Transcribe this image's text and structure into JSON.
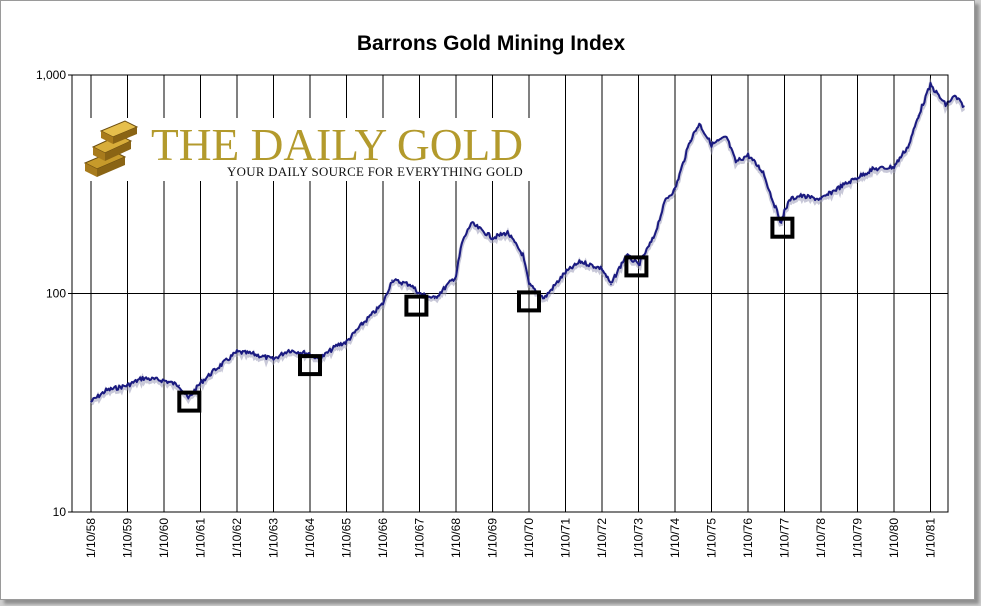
{
  "chart_data": {
    "type": "line",
    "title": "Barrons Gold Mining Index",
    "xlabel": "",
    "ylabel": "",
    "y_scale": "log",
    "ylim": [
      10,
      1000
    ],
    "y_ticks": [
      "10",
      "100",
      "1,000"
    ],
    "grid": "vertical lines at each year tick, horizontal line at 100",
    "x_ticks": [
      "1/10/58",
      "1/10/59",
      "1/10/60",
      "1/10/61",
      "1/10/62",
      "1/10/63",
      "1/10/64",
      "1/10/65",
      "1/10/66",
      "1/10/67",
      "1/10/68",
      "1/10/69",
      "1/10/70",
      "1/10/71",
      "1/10/72",
      "1/10/73",
      "1/10/74",
      "1/10/75",
      "1/10/76",
      "1/10/77",
      "1/10/78",
      "1/10/79",
      "1/10/80",
      "1/10/81"
    ],
    "series": [
      {
        "color": "#1a1a80",
        "x": [
          "1958-01-10",
          "1958-06-10",
          "1959-01-10",
          "1959-06-10",
          "1960-01-10",
          "1960-06-10",
          "1960-09-10",
          "1961-01-10",
          "1961-06-10",
          "1962-01-10",
          "1962-06-10",
          "1963-01-10",
          "1963-06-10",
          "1964-01-10",
          "1964-04-10",
          "1964-10-10",
          "1965-01-10",
          "1965-06-10",
          "1966-01-10",
          "1966-04-10",
          "1966-10-10",
          "1967-01-10",
          "1967-06-10",
          "1967-09-10",
          "1968-01-10",
          "1968-03-10",
          "1968-06-10",
          "1969-01-10",
          "1969-06-10",
          "1969-11-10",
          "1970-01-10",
          "1970-06-10",
          "1971-01-10",
          "1971-06-10",
          "1972-01-10",
          "1972-04-10",
          "1972-06-10",
          "1972-09-10",
          "1973-01-10",
          "1973-06-10",
          "1973-10-10",
          "1974-01-10",
          "1974-06-10",
          "1974-09-10",
          "1975-01-10",
          "1975-06-10",
          "1975-09-10",
          "1976-01-10",
          "1976-06-10",
          "1976-09-10",
          "1976-12-10",
          "1977-01-10",
          "1977-03-10",
          "1977-06-10",
          "1978-01-10",
          "1978-06-10",
          "1979-01-10",
          "1979-06-10",
          "1980-01-10",
          "1980-06-10",
          "1980-09-10",
          "1981-01-10",
          "1981-06-10",
          "1981-09-10",
          "1981-12-10"
        ],
        "values": [
          32,
          36,
          38,
          41,
          40,
          38,
          33,
          39,
          45,
          54,
          53,
          50,
          55,
          53,
          50,
          58,
          60,
          72,
          90,
          115,
          110,
          100,
          95,
          105,
          120,
          170,
          210,
          180,
          190,
          150,
          110,
          95,
          125,
          140,
          130,
          110,
          125,
          150,
          135,
          180,
          270,
          300,
          500,
          600,
          480,
          520,
          400,
          430,
          360,
          270,
          210,
          240,
          270,
          280,
          270,
          300,
          340,
          370,
          380,
          480,
          650,
          900,
          730,
          800,
          720
        ]
      }
    ],
    "markers": [
      {
        "x": "1960-09-20",
        "y": 32
      },
      {
        "x": "1964-01-10",
        "y": 47
      },
      {
        "x": "1966-12-10",
        "y": 88
      },
      {
        "x": "1970-01-10",
        "y": 92
      },
      {
        "x": "1972-12-20",
        "y": 133
      },
      {
        "x": "1976-12-20",
        "y": 200
      }
    ]
  },
  "logo": {
    "main_text": "THE DAILY GOLD",
    "sub_text": "YOUR DAILY SOURCE FOR EVERYTHING GOLD"
  }
}
